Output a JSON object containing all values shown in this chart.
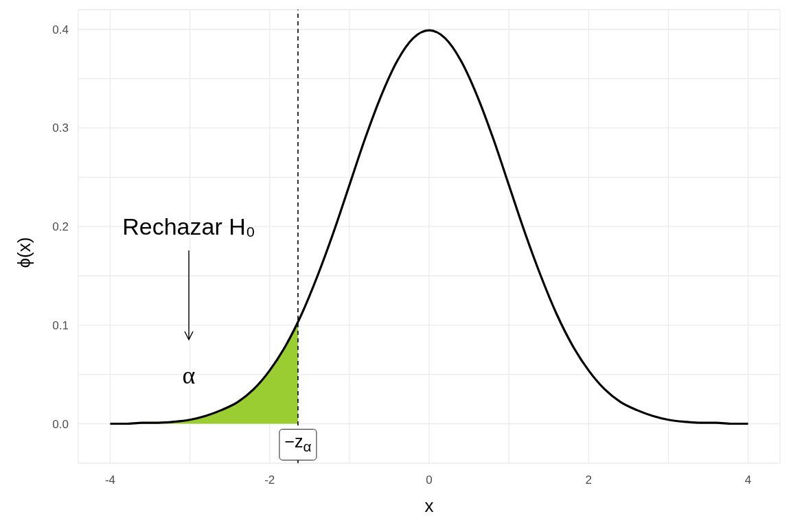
{
  "chart_data": {
    "type": "line",
    "xlabel": "x",
    "ylabel": "ϕ(x)",
    "xlim": [
      -4.4,
      4.4
    ],
    "xticks": [
      -4,
      {
        "value": -3,
        "label": null
      },
      -2,
      {
        "value": -1,
        "label": null
      },
      0,
      {
        "value": 1,
        "label": null
      },
      2,
      {
        "value": 3,
        "label": null
      },
      4
    ],
    "ylim": [
      -0.04,
      0.42
    ],
    "yticks": [
      {
        "value": 0,
        "label": "0.0"
      },
      {
        "value": 0.05,
        "label": null
      },
      0.1,
      {
        "value": 0.15,
        "label": null
      },
      0.2,
      {
        "value": 0.25,
        "label": null
      },
      0.3,
      {
        "value": 0.35,
        "label": null
      },
      0.4
    ],
    "grid": true,
    "series": [
      {
        "type": "area",
        "color": "#9acd32",
        "x": [
          -4,
          -3.8,
          -3.6,
          -3.4,
          -3.2,
          -3,
          -2.8,
          -2.6,
          -2.4,
          -2.2,
          -2,
          -1.8,
          -1.645
        ],
        "values": [
          0,
          0,
          0.001,
          0.001,
          0.002,
          0.004,
          0.008,
          0.014,
          0.022,
          0.035,
          0.054,
          0.079,
          0.103
        ]
      },
      {
        "color": "#000000",
        "x": [
          -4,
          -3.8,
          -3.6,
          -3.4,
          -3.2,
          -3,
          -2.8,
          -2.6,
          -2.4,
          -2.2,
          -2,
          -1.8,
          -1.6,
          -1.4,
          -1.2,
          -1,
          -0.8,
          -0.6,
          -0.4,
          -0.2,
          0,
          0.2,
          0.4,
          0.6,
          0.8,
          1,
          1.2,
          1.4,
          1.6,
          1.8,
          2,
          2.2,
          2.4,
          2.6,
          2.8,
          3,
          3.2,
          3.4,
          3.6,
          3.8,
          4
        ],
        "values": [
          0,
          0,
          0.001,
          0.001,
          0.002,
          0.004,
          0.008,
          0.014,
          0.022,
          0.035,
          0.054,
          0.079,
          0.111,
          0.15,
          0.194,
          0.242,
          0.29,
          0.333,
          0.368,
          0.391,
          0.399,
          0.391,
          0.368,
          0.333,
          0.29,
          0.242,
          0.194,
          0.15,
          0.111,
          0.079,
          0.054,
          0.035,
          0.022,
          0.014,
          0.008,
          0.004,
          0.002,
          0.001,
          0.001,
          0,
          0
        ]
      }
    ],
    "ref_lines": [
      {
        "axis": "x",
        "value": -1.645,
        "label": "−z$_{α}$",
        "color": "#000000",
        "line_style": "dashed"
      }
    ],
    "annotations": [
      "Rechazar H₀",
      "α"
    ]
  }
}
